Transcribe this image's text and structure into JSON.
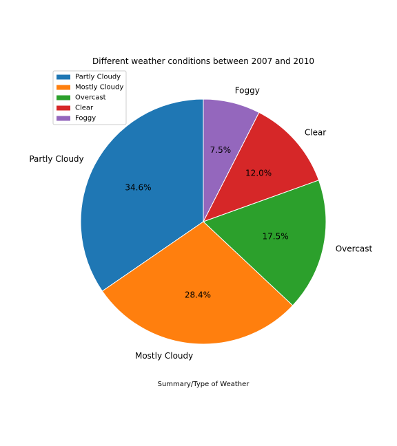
{
  "chart_data": {
    "type": "pie",
    "title": "Different weather conditions between 2007 and 2010",
    "xlabel": "Summary/Type of Weather",
    "start_angle_deg": 90,
    "direction": "counterclockwise",
    "legend_position": "top-left",
    "slices": [
      {
        "label": "Partly Cloudy",
        "value": 34.6,
        "pct_label": "34.6%",
        "color": "#1f77b4"
      },
      {
        "label": "Mostly Cloudy",
        "value": 28.4,
        "pct_label": "28.4%",
        "color": "#ff7f0e"
      },
      {
        "label": "Overcast",
        "value": 17.5,
        "pct_label": "17.5%",
        "color": "#2ca02c"
      },
      {
        "label": "Clear",
        "value": 12.0,
        "pct_label": "12.0%",
        "color": "#d62728"
      },
      {
        "label": "Foggy",
        "value": 7.5,
        "pct_label": "7.5%",
        "color": "#9467bd"
      }
    ]
  }
}
